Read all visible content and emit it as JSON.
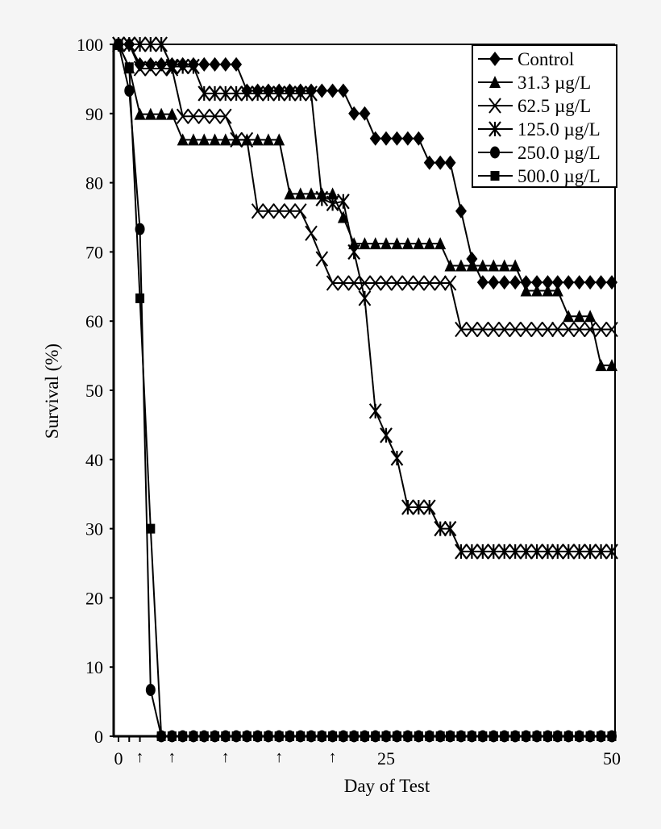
{
  "chart_data": {
    "type": "line",
    "title": "",
    "xlabel": "Day of Test",
    "ylabel": "Survival (%)",
    "xlim": [
      0,
      50
    ],
    "ylim": [
      0,
      100
    ],
    "x_tick_labels": [
      "0",
      "25",
      "50"
    ],
    "x_ticks": [
      0,
      25,
      50
    ],
    "y_ticks": [
      0,
      10,
      20,
      30,
      40,
      50,
      60,
      70,
      80,
      90,
      100
    ],
    "y_tick_labels": [
      "0",
      "10",
      "20",
      "30",
      "40",
      "50",
      "60",
      "70",
      "80",
      "90",
      "100"
    ],
    "grid": false,
    "legend_placement": "top-right",
    "arrow_annotations_day": [
      2,
      5,
      10,
      15,
      20
    ],
    "arrow_glyph": "↑",
    "x": [
      0,
      1,
      2,
      3,
      4,
      5,
      6,
      7,
      8,
      9,
      10,
      11,
      12,
      13,
      14,
      15,
      16,
      17,
      18,
      19,
      20,
      21,
      22,
      23,
      24,
      25,
      26.2,
      27.4,
      28.6,
      29.8,
      31.0,
      32.1,
      33.3,
      34.5,
      35.7,
      36.9,
      38.1,
      39.3,
      40.5,
      41.7,
      42.9,
      44.0,
      45.2,
      46.4,
      47.6,
      48.8,
      50.0
    ],
    "series": [
      {
        "name": "Control",
        "marker": "diamond",
        "values": [
          100,
          100,
          97.1,
          97.1,
          97.1,
          97.1,
          97.1,
          97.1,
          97.1,
          97.1,
          97.1,
          97.1,
          93.3,
          93.3,
          93.3,
          93.3,
          93.3,
          93.3,
          93.3,
          93.3,
          93.3,
          93.3,
          90,
          90,
          86.4,
          86.4,
          86.4,
          86.4,
          86.4,
          82.9,
          82.9,
          82.9,
          75.9,
          69,
          65.6,
          65.6,
          65.6,
          65.6,
          65.6,
          65.6,
          65.6,
          65.6,
          65.6,
          65.6,
          65.6,
          65.6,
          65.6
        ]
      },
      {
        "name": "31.3 µg/L",
        "marker": "triangle",
        "values": [
          100,
          96.6,
          89.9,
          89.9,
          89.9,
          89.9,
          86.2,
          86.2,
          86.2,
          86.2,
          86.2,
          86.2,
          86.2,
          86.2,
          86.2,
          86.2,
          78.4,
          78.4,
          78.4,
          78.4,
          78.4,
          75,
          71.2,
          71.2,
          71.2,
          71.2,
          71.2,
          71.2,
          71.2,
          71.2,
          71.2,
          68,
          68,
          68,
          68,
          68,
          68,
          68,
          64.4,
          64.4,
          64.4,
          64.4,
          60.7,
          60.7,
          60.7,
          53.6,
          53.6
        ]
      },
      {
        "name": "62.5 µg/L",
        "marker": "x",
        "values": [
          100,
          100,
          96.5,
          96.5,
          96.5,
          96.5,
          89.6,
          89.6,
          89.6,
          89.6,
          89.6,
          86.2,
          86.2,
          75.9,
          75.9,
          75.9,
          75.9,
          75.9,
          72.7,
          69,
          65.5,
          65.5,
          65.5,
          65.5,
          65.5,
          65.5,
          65.5,
          65.5,
          65.5,
          65.5,
          65.5,
          65.5,
          58.8,
          58.8,
          58.8,
          58.8,
          58.8,
          58.8,
          58.8,
          58.8,
          58.8,
          58.8,
          58.8,
          58.8,
          58.8,
          58.8,
          58.8
        ]
      },
      {
        "name": "125.0 µg/L",
        "marker": "asterisk",
        "values": [
          100,
          100,
          100,
          100,
          100,
          96.8,
          96.8,
          96.8,
          92.9,
          92.9,
          92.9,
          92.9,
          92.9,
          92.9,
          92.9,
          92.9,
          92.9,
          92.9,
          92.9,
          77.7,
          77,
          77.3,
          70,
          63.3,
          47,
          43.5,
          40.2,
          33.1,
          33.1,
          33.1,
          30,
          30,
          26.7,
          26.7,
          26.7,
          26.7,
          26.7,
          26.7,
          26.7,
          26.7,
          26.7,
          26.7,
          26.7,
          26.7,
          26.7,
          26.7,
          26.7
        ]
      },
      {
        "name": "250.0 µg/L",
        "marker": "circle",
        "values": [
          100,
          93.3,
          73.3,
          6.7,
          0,
          0,
          0,
          0,
          0,
          0,
          0,
          0,
          0,
          0,
          0,
          0,
          0,
          0,
          0,
          0,
          0,
          0,
          0,
          0,
          0,
          0,
          0,
          0,
          0,
          0,
          0,
          0,
          0,
          0,
          0,
          0,
          0,
          0,
          0,
          0,
          0,
          0,
          0,
          0,
          0,
          0,
          0
        ]
      },
      {
        "name": "500.0 µg/L",
        "marker": "square",
        "values": [
          100,
          96.7,
          63.3,
          30,
          0,
          0,
          0,
          0,
          0,
          0,
          0,
          0,
          0,
          0,
          0,
          0,
          0,
          0,
          0,
          0,
          0,
          0,
          0,
          0,
          0,
          0,
          0,
          0,
          0,
          0,
          0,
          0,
          0,
          0,
          0,
          0,
          0,
          0,
          0,
          0,
          0,
          0,
          0,
          0,
          0,
          0,
          0
        ]
      }
    ],
    "colors": {
      "line": "#000000",
      "background": "#ffffff",
      "page": "#f5f5f5"
    }
  }
}
